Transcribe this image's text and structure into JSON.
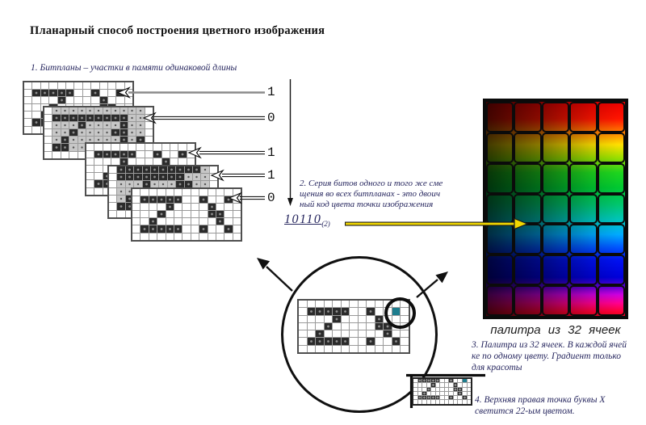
{
  "title": "Планарный способ построения цветного изображения",
  "notes": {
    "note1": "1. Битпланы –  участки в памяти одинаковой длины",
    "note2_lines": [
      "2. Серия битов одного и того же сме",
      "щения во всех битпланах - это двоич",
      "ный код цвета точки изображения"
    ],
    "note3_lines": [
      "3. Палитра из 32 ячеек. В каждой ячей",
      "ке по одному цвету. Градиент только",
      "для красоты"
    ],
    "note4_lines": [
      "4. Верхняя правая точка буквы X",
      "светится 22-ым цветом."
    ]
  },
  "bits": [
    "1",
    "0",
    "1",
    "1",
    "0"
  ],
  "binary": {
    "digits": "10110",
    "base": "(2)"
  },
  "palette": {
    "caption": "палитра из 32 ячеек",
    "cols": 5,
    "rows": 7,
    "hue_order_top_to_bottom": [
      "red",
      "orange-yellow",
      "green",
      "green-teal",
      "cyan-blue",
      "blue",
      "magenta-red"
    ],
    "dark_side": "left"
  },
  "colors": {
    "highlight_teal": "#1d7d8e",
    "arrow_yellow": "#f2d800",
    "note_text": "#26265e",
    "grid_dark_cell": "#2b2b2b",
    "grid_gray_cell": "#c7c7c7"
  },
  "patterns": {
    "zx": [
      ".............",
      ".#####..#..#.",
      "....#....#...",
      "...#.....##..",
      "..#.......#..",
      ".#####..#..#.",
      "............."
    ],
    "zx_magnified": [
      ".............",
      ".#####..#..T.",
      "....#....#...",
      "...#.....##..",
      "..#.......#..",
      ".#####..#..#.",
      "............."
    ],
    "zx_small": [
      ".#####..#..T.",
      "....#....#...",
      "...#.....##..",
      "..#.......#..",
      ".#####..#..#.",
      "............."
    ],
    "dither_a": [
      ".+++++++++++.",
      ".#########++.",
      ".+++#++++#++.",
      ".++#++++##++.",
      ".+#++++++#+#.",
      ".##+++##+++#.",
      "............."
    ],
    "dither_b": [
      ".##########+.",
      ".########+++.",
      ".+++#+++##++.",
      ".++#+##+++++.",
      ".+#++++++##+.",
      ".#####+++++#.",
      "............."
    ]
  },
  "bitplanes": [
    {
      "pattern": "zx",
      "bit": "1"
    },
    {
      "pattern": "dither_a",
      "bit": "0"
    },
    {
      "pattern": "zx",
      "bit": "1"
    },
    {
      "pattern": "dither_b",
      "bit": "1"
    },
    {
      "pattern": "zx",
      "bit": "0"
    }
  ]
}
